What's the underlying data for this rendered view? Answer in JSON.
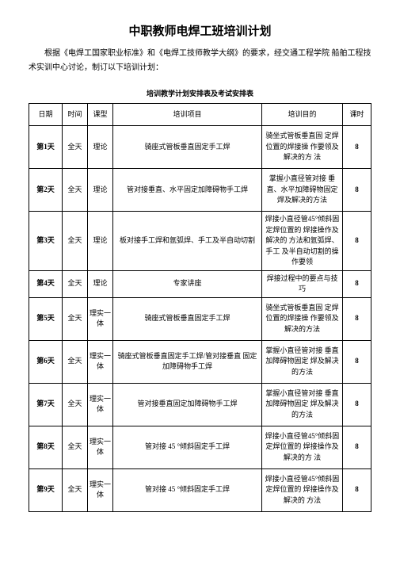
{
  "title": "中职教师电焊工班培训计划",
  "intro": "根据《电焊工国家职业标准》和《电焊工技师教学大纲》的要求，经交通工程学院 船舶工程技术实训中心讨论，制订以下培训计划：",
  "subtitle": "培训教学计划安排表及考试安排表",
  "headers": {
    "date": "日期",
    "time": "时间",
    "type": "课型",
    "project": "培训项目",
    "goal": "培训目的",
    "hours": "课时"
  },
  "rows": [
    {
      "date": "第1天",
      "time": "全天",
      "type": "理论",
      "project": "骑座式管板垂直固定手工焊",
      "goal": "骑坐式管板垂直固 定焊位置的焊接操 作要领及解决的方 法",
      "hours": "8"
    },
    {
      "date": "第2天",
      "time": "全天",
      "type": "理论",
      "project": "管对接垂直、水平固定加障碍物手工焊",
      "goal": "掌握小直径管对接 垂直、水平加障碍物固定焊及解决的方法",
      "hours": "8"
    },
    {
      "date": "第3天",
      "time": "全天",
      "type": "理论",
      "project": "板对接手工焊和氩弧焊、手工及半自动切割",
      "goal": "焊接小直径管45°倾斜固定焊位置的 焊接操作及解决的 方法和氩弧焊、手工 及半自动切割的操 作要领",
      "hours": "8"
    },
    {
      "date": "第4天",
      "time": "全天",
      "type": "理论",
      "project": "专家讲座",
      "goal": "焊接过程中的要点与技巧",
      "hours": "8"
    },
    {
      "date": "第5天",
      "time": "全天",
      "type": "理实一体",
      "project": "骑座式管板垂直固定手工焊",
      "goal": "骑坐式管板垂直固 定焊位置的焊接操 作要领及解决的方法",
      "hours": "8"
    },
    {
      "date": "第6天",
      "time": "全天",
      "type": "理实一体",
      "project": "骑座式管板垂直固定手工焊/管对接垂直 固定加障碍物手工焊",
      "goal": "掌握小直径管对接 垂直加障碍物固定 焊及解决的方法",
      "hours": "8"
    },
    {
      "date": "第7天",
      "time": "全天",
      "type": "理实一体",
      "project": "管对接垂直固定加障碍物手工焊",
      "goal": "掌握小直径管对接 垂直加障碍物固定 焊及解决的方法",
      "hours": "8"
    },
    {
      "date": "第8天",
      "time": "全天",
      "type": "理实一体",
      "project": "管对接 45 °倾斜固定手工焊",
      "goal": "焊接小直径管45°倾斜固定焊位置的 焊接操作及解决的方 法",
      "hours": "8"
    },
    {
      "date": "第9天",
      "time": "全天",
      "type": "理实一体",
      "project": "管对接 45 °倾斜固定手工焊",
      "goal": "焊接小直径管45°倾斜固定焊位置的 焊接操作及解决的 方法",
      "hours": "8"
    }
  ]
}
